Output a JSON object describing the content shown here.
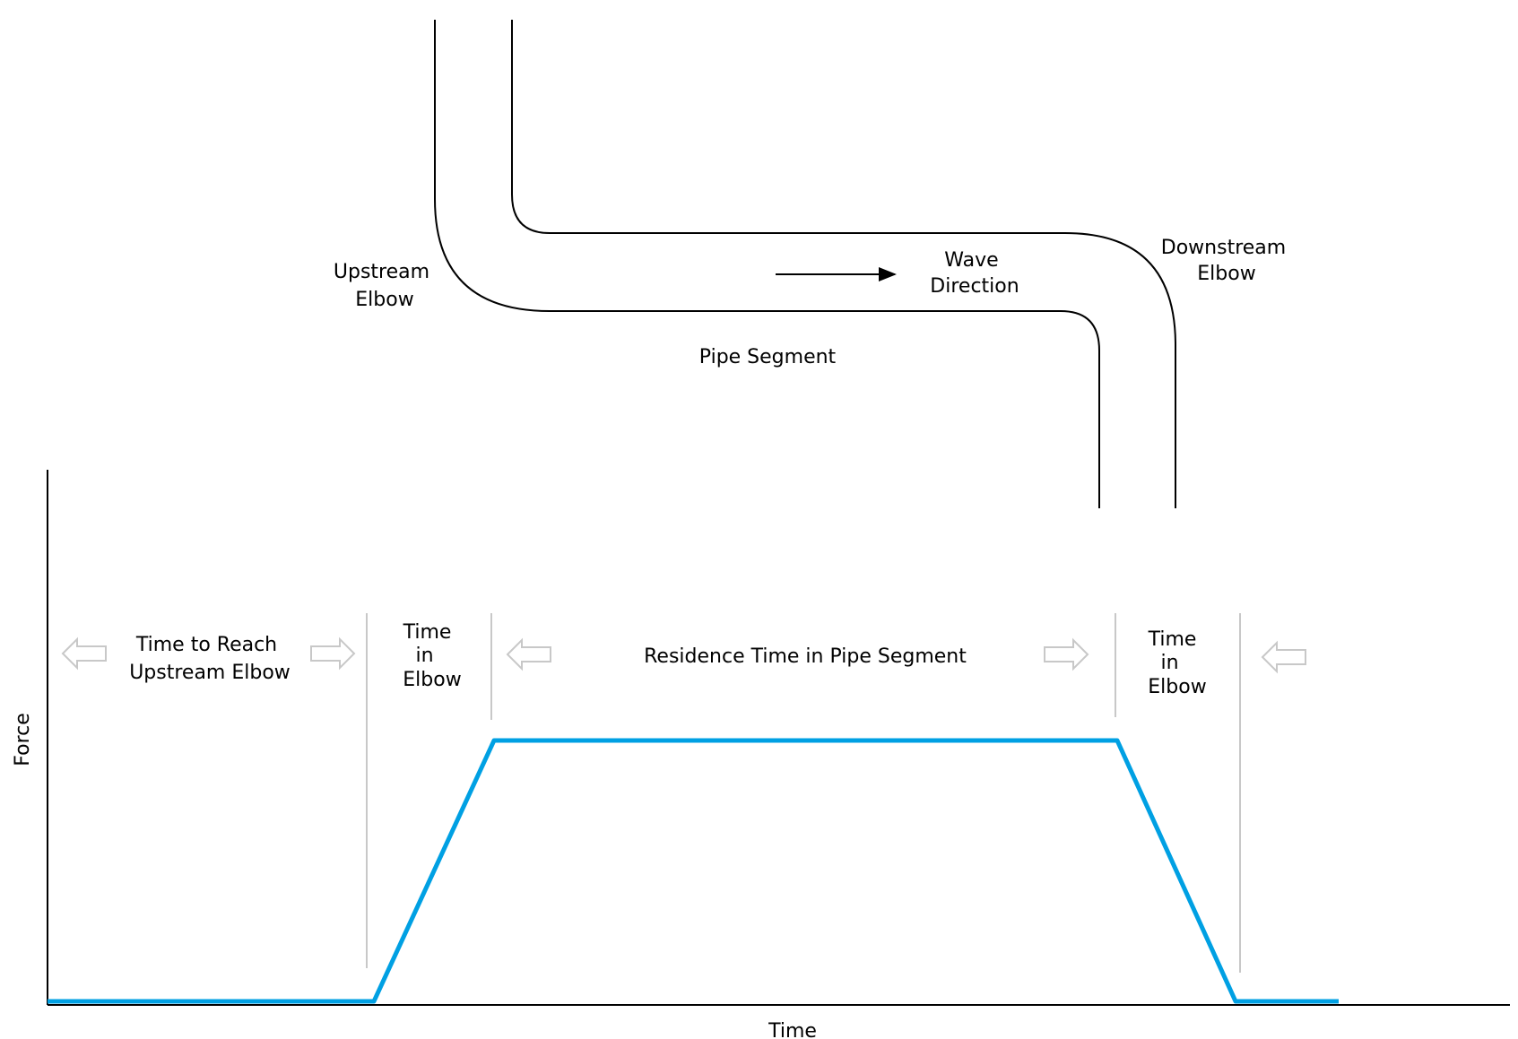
{
  "colors": {
    "force_line": "#00a0e3",
    "axis": "#000000",
    "divider": "#c8c8c8",
    "hollow_arrow": "#c8c8c8"
  },
  "pipe": {
    "upstream_label": [
      "Upstream",
      "Elbow"
    ],
    "downstream_label": [
      "Downstream",
      "Elbow"
    ],
    "wave_label": [
      "Wave",
      "Direction"
    ],
    "segment_label": "Pipe Segment"
  },
  "plot": {
    "y_label": "Force",
    "x_label": "Time",
    "phases": {
      "reach": [
        "Time to Reach",
        "Upstream Elbow"
      ],
      "elbow1": [
        "Time",
        "in",
        "Elbow"
      ],
      "residence": "Residence Time in Pipe Segment",
      "elbow2": [
        "Time",
        "in",
        "Elbow"
      ]
    }
  }
}
